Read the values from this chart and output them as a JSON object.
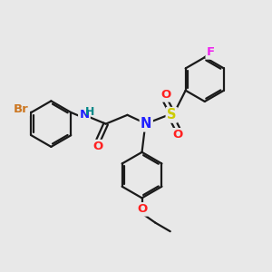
{
  "bg_color": "#e8e8e8",
  "bond_color": "#1a1a1a",
  "N_color": "#2020ff",
  "O_color": "#ff2020",
  "S_color": "#cccc00",
  "Br_color": "#cc7722",
  "F_color": "#ee22ee",
  "H_color": "#008888",
  "lw": 1.6,
  "fs": 9.5,
  "xlim": [
    0,
    10
  ],
  "ylim": [
    0,
    10
  ]
}
